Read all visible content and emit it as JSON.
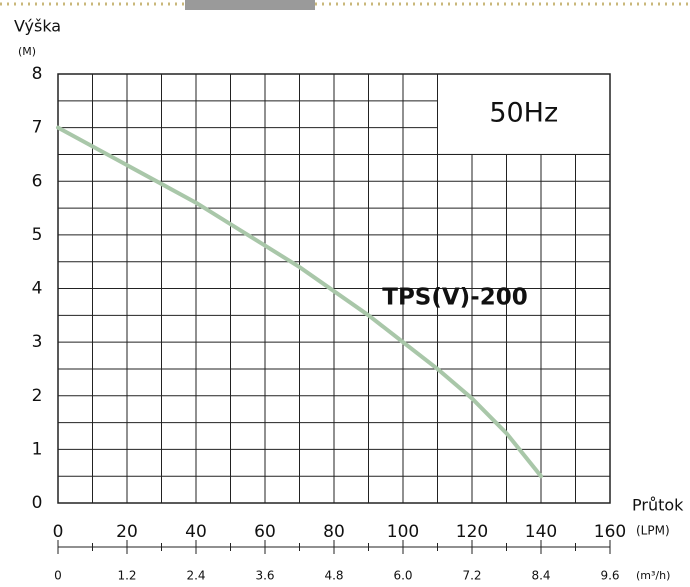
{
  "chart_data": {
    "type": "line",
    "y_label": "Výška",
    "y_unit": "(M)",
    "x_label": "Průtok",
    "x_unit": "(LPM)",
    "x2_unit": "(m³/h)",
    "annotation": "50Hz",
    "x": [
      0,
      10,
      20,
      30,
      40,
      50,
      60,
      70,
      80,
      90,
      100,
      110,
      120,
      130,
      140
    ],
    "series": [
      {
        "name": "TPS(V)-200",
        "color": "#a9c7a9",
        "values": [
          7,
          6.65,
          6.3,
          5.95,
          5.6,
          5.2,
          4.8,
          4.4,
          3.95,
          3.5,
          3.0,
          2.5,
          1.95,
          1.3,
          0.5
        ]
      }
    ],
    "xlim": [
      0,
      160
    ],
    "xticks": [
      0,
      20,
      40,
      60,
      80,
      100,
      120,
      140,
      160
    ],
    "ylim": [
      0,
      8
    ],
    "yticks": [
      0,
      1,
      2,
      3,
      4,
      5,
      6,
      7,
      8
    ],
    "x2lim": [
      0,
      9.6
    ],
    "x2ticks": [
      0,
      1.2,
      2.4,
      3.6,
      4.8,
      {
        "value": 6,
        "label": "6.0"
      },
      7.2,
      8.4,
      9.6
    ],
    "grid": true
  }
}
